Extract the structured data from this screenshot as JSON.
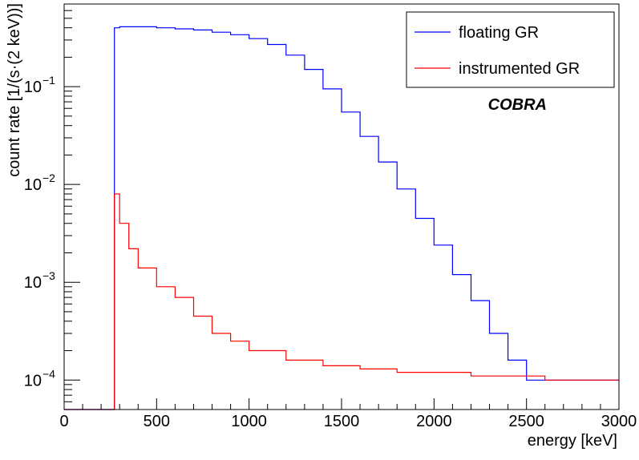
{
  "chart_data": {
    "type": "line",
    "title": "",
    "xlabel": "energy [keV]",
    "ylabel": "count rate [1/(s·(2 keV))]",
    "annotation": "COBRA",
    "xlim": [
      0,
      3000
    ],
    "ylim": [
      5e-05,
      0.7
    ],
    "yscale": "log",
    "grid": false,
    "legend_position": "top-right",
    "x_ticks": [
      0,
      500,
      1000,
      1500,
      2000,
      2500,
      3000
    ],
    "x_tick_labels": [
      "0",
      "500",
      "1000",
      "1500",
      "2000",
      "2500",
      "3000"
    ],
    "y_ticks": [
      0.0001,
      0.001,
      0.01,
      0.1
    ],
    "y_tick_mantissa": [
      "10",
      "10",
      "10",
      "10"
    ],
    "y_tick_exponent": [
      "−4",
      "−3",
      "−2",
      "−1"
    ],
    "series": [
      {
        "name": "floating GR",
        "color": "#0000ff",
        "x": [
          0,
          270,
          272,
          300,
          400,
          500,
          600,
          700,
          800,
          900,
          1000,
          1100,
          1200,
          1300,
          1400,
          1500,
          1600,
          1700,
          1800,
          1900,
          2000,
          2100,
          2200,
          2300,
          2400,
          2500,
          2600,
          2700,
          2800,
          2900,
          3000
        ],
        "y": [
          5e-05,
          5e-05,
          0.4,
          0.41,
          0.41,
          0.4,
          0.39,
          0.38,
          0.36,
          0.34,
          0.31,
          0.27,
          0.21,
          0.15,
          0.095,
          0.055,
          0.031,
          0.017,
          0.009,
          0.0045,
          0.0024,
          0.0012,
          0.00065,
          0.0003,
          0.00016,
          0.0001,
          0.0001,
          0.0001,
          0.0001,
          0.0001,
          0.0001
        ]
      },
      {
        "name": "instrumented GR",
        "color": "#ff0000",
        "x": [
          0,
          270,
          272,
          300,
          350,
          400,
          500,
          600,
          700,
          800,
          900,
          1000,
          1200,
          1400,
          1600,
          1800,
          2000,
          2200,
          2400,
          2600,
          2800,
          3000
        ],
        "y": [
          5e-05,
          5e-05,
          0.008,
          0.004,
          0.0022,
          0.0014,
          0.0009,
          0.0007,
          0.00045,
          0.0003,
          0.00025,
          0.0002,
          0.00016,
          0.00014,
          0.00013,
          0.00012,
          0.00012,
          0.00011,
          0.00011,
          0.0001,
          0.0001,
          0.0001
        ]
      }
    ]
  }
}
